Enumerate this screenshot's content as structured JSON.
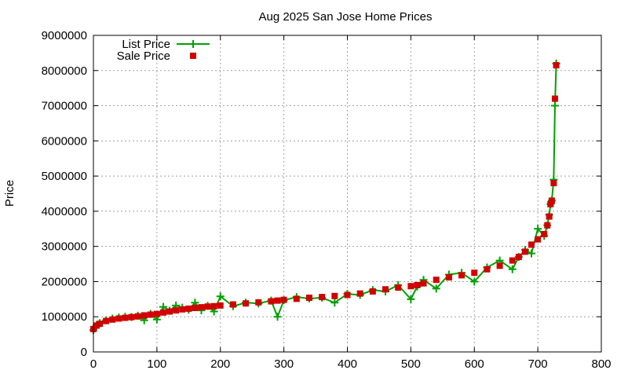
{
  "chart_data": {
    "type": "scatter",
    "title": "Aug 2025 San Jose Home Prices",
    "xlabel": "",
    "ylabel": "Price",
    "xlim": [
      0,
      800
    ],
    "ylim": [
      0,
      9000000
    ],
    "xticks": [
      0,
      100,
      200,
      300,
      400,
      500,
      600,
      700,
      800
    ],
    "yticks": [
      0,
      1000000,
      2000000,
      3000000,
      4000000,
      5000000,
      6000000,
      7000000,
      8000000,
      9000000
    ],
    "grid": true,
    "legend_position": "top-left",
    "series": [
      {
        "name": "List Price",
        "style": "linespoints",
        "marker": "plus",
        "color": "#00a000",
        "x": [
          0,
          5,
          10,
          20,
          30,
          40,
          50,
          60,
          70,
          80,
          90,
          100,
          110,
          120,
          130,
          140,
          150,
          160,
          170,
          180,
          190,
          200,
          220,
          240,
          260,
          280,
          290,
          300,
          320,
          340,
          360,
          380,
          400,
          420,
          440,
          460,
          480,
          500,
          510,
          520,
          540,
          560,
          580,
          600,
          620,
          640,
          660,
          670,
          680,
          690,
          700,
          710,
          715,
          718,
          720,
          722,
          725,
          727,
          729
        ],
        "y": [
          620000,
          760000,
          820000,
          900000,
          950000,
          980000,
          1000000,
          990000,
          1030000,
          900000,
          1080000,
          920000,
          1280000,
          1170000,
          1320000,
          1260000,
          1200000,
          1400000,
          1180000,
          1310000,
          1150000,
          1580000,
          1300000,
          1400000,
          1380000,
          1460000,
          1000000,
          1470000,
          1560000,
          1520000,
          1540000,
          1400000,
          1650000,
          1620000,
          1760000,
          1720000,
          1900000,
          1500000,
          1860000,
          2050000,
          1800000,
          2200000,
          2250000,
          2000000,
          2400000,
          2600000,
          2350000,
          2700000,
          2900000,
          2800000,
          3500000,
          3300000,
          3600000,
          3900000,
          4200000,
          4300000,
          4900000,
          7000000,
          8200000
        ]
      },
      {
        "name": "Sale Price",
        "style": "points",
        "marker": "square",
        "color": "#d00000",
        "x": [
          0,
          5,
          10,
          20,
          30,
          40,
          50,
          60,
          70,
          80,
          90,
          100,
          110,
          120,
          130,
          140,
          150,
          160,
          170,
          180,
          190,
          200,
          220,
          240,
          260,
          280,
          290,
          300,
          320,
          340,
          360,
          380,
          400,
          420,
          440,
          460,
          480,
          500,
          510,
          520,
          540,
          560,
          580,
          600,
          620,
          640,
          660,
          670,
          680,
          690,
          700,
          710,
          715,
          718,
          720,
          722,
          725,
          727,
          729
        ],
        "y": [
          650000,
          750000,
          800000,
          880000,
          920000,
          950000,
          970000,
          990000,
          1010000,
          1040000,
          1060000,
          1080000,
          1120000,
          1150000,
          1180000,
          1210000,
          1230000,
          1250000,
          1270000,
          1290000,
          1300000,
          1320000,
          1350000,
          1380000,
          1410000,
          1440000,
          1460000,
          1480000,
          1510000,
          1540000,
          1560000,
          1590000,
          1620000,
          1660000,
          1720000,
          1780000,
          1830000,
          1870000,
          1900000,
          1950000,
          2050000,
          2120000,
          2180000,
          2250000,
          2350000,
          2450000,
          2600000,
          2700000,
          2850000,
          3050000,
          3200000,
          3350000,
          3600000,
          3850000,
          4200000,
          4300000,
          4800000,
          7200000,
          8150000
        ]
      }
    ]
  }
}
